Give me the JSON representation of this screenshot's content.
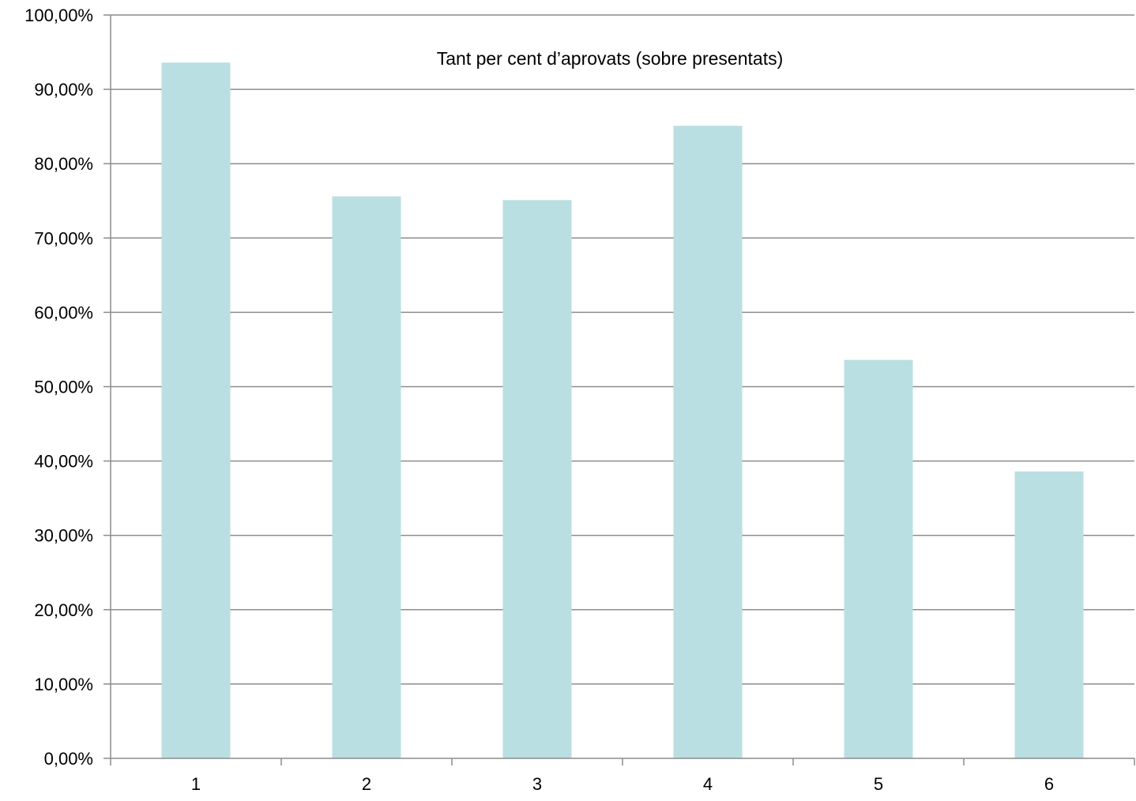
{
  "chart_data": {
    "type": "bar",
    "title": "Tant per cent d’aprovats (sobre presentats)",
    "xlabel": "",
    "ylabel": "",
    "categories": [
      "1",
      "2",
      "3",
      "4",
      "5",
      "6"
    ],
    "values": [
      93.6,
      75.6,
      75.1,
      85.1,
      53.6,
      38.6
    ],
    "ylim": [
      0,
      100
    ],
    "yticks": [
      0,
      10,
      20,
      30,
      40,
      50,
      60,
      70,
      80,
      90,
      100
    ],
    "ytick_labels": [
      "0,00%",
      "10,00%",
      "20,00%",
      "30,00%",
      "40,00%",
      "50,00%",
      "60,00%",
      "70,00%",
      "80,00%",
      "90,00%",
      "100,00%"
    ],
    "grid": true,
    "legend": "none",
    "colors": {
      "bar": "#b9dfe2",
      "grid": "#8c8c8c",
      "text": "#000000"
    }
  }
}
